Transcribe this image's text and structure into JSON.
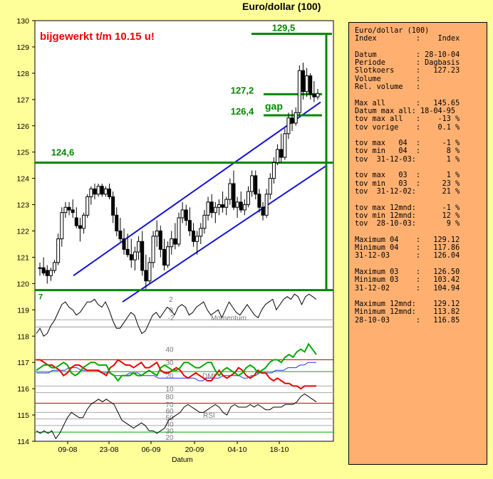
{
  "title": "Euro/dollar (100)",
  "chart_data": {
    "type": "line",
    "title": "Euro/dollar (100)",
    "xlabel": "Datum",
    "ylabel": "",
    "ylim": [
      114,
      130
    ],
    "yticks": [
      114,
      115,
      116,
      117,
      118,
      119,
      120,
      121,
      122,
      123,
      124,
      125,
      126,
      127,
      128,
      129,
      130
    ],
    "xticks": [
      "09-08",
      "23-08",
      "06-09",
      "20-09",
      "04-10",
      "18-10"
    ],
    "annotation": "bijgewerkt t/m 10.15 u!",
    "levels": [
      {
        "label": "129,5",
        "value": 129.5
      },
      {
        "label": "127,2",
        "value": 127.2
      },
      {
        "label": "126,4",
        "value": 126.4
      },
      {
        "label": "124,6",
        "value": 124.6
      }
    ],
    "gap_label": "gap",
    "candles": [
      [
        120.6,
        120.8,
        120.3,
        120.6
      ],
      [
        120.6,
        121.0,
        120.3,
        120.4
      ],
      [
        120.5,
        120.7,
        120.0,
        120.3
      ],
      [
        120.3,
        120.6,
        120.1,
        120.5
      ],
      [
        120.5,
        120.9,
        120.4,
        120.8
      ],
      [
        120.8,
        121.9,
        120.7,
        121.7
      ],
      [
        121.7,
        122.9,
        121.4,
        122.7
      ],
      [
        122.7,
        123.1,
        122.5,
        122.9
      ],
      [
        122.9,
        123.1,
        122.6,
        122.8
      ],
      [
        122.8,
        123.2,
        122.5,
        122.7
      ],
      [
        122.5,
        122.9,
        122.1,
        122.2
      ],
      [
        122.2,
        122.5,
        121.6,
        122.1
      ],
      [
        122.1,
        122.7,
        121.9,
        122.6
      ],
      [
        122.6,
        123.4,
        122.5,
        123.3
      ],
      [
        123.3,
        123.7,
        123.0,
        123.6
      ],
      [
        123.6,
        123.8,
        123.2,
        123.4
      ],
      [
        123.4,
        123.8,
        123.3,
        123.7
      ],
      [
        123.7,
        123.8,
        123.3,
        123.4
      ],
      [
        123.4,
        123.7,
        123.3,
        123.6
      ],
      [
        123.6,
        123.8,
        123.2,
        123.3
      ],
      [
        123.3,
        123.5,
        122.3,
        122.6
      ],
      [
        122.6,
        122.9,
        121.8,
        122.0
      ],
      [
        122.0,
        122.5,
        121.6,
        121.7
      ],
      [
        121.7,
        122.1,
        121.1,
        121.3
      ],
      [
        121.3,
        121.9,
        121.0,
        121.1
      ],
      [
        121.1,
        121.7,
        120.6,
        120.9
      ],
      [
        120.9,
        121.4,
        120.5,
        121.2
      ],
      [
        121.2,
        121.8,
        120.9,
        121.6
      ],
      [
        121.6,
        122.0,
        120.3,
        120.5
      ],
      [
        120.5,
        121.1,
        119.8,
        120.1
      ],
      [
        120.1,
        121.0,
        120.0,
        120.8
      ],
      [
        120.8,
        122.0,
        120.6,
        121.8
      ],
      [
        121.8,
        122.4,
        121.4,
        122.0
      ],
      [
        122.0,
        122.2,
        121.0,
        121.3
      ],
      [
        121.3,
        121.7,
        120.5,
        120.7
      ],
      [
        120.7,
        121.6,
        120.6,
        121.4
      ],
      [
        121.4,
        122.0,
        121.1,
        121.7
      ],
      [
        121.7,
        122.3,
        121.3,
        121.5
      ],
      [
        121.5,
        122.7,
        121.4,
        122.5
      ],
      [
        122.5,
        123.1,
        122.3,
        122.8
      ],
      [
        122.8,
        123.0,
        122.2,
        122.4
      ],
      [
        122.4,
        122.9,
        121.8,
        122.0
      ],
      [
        122.0,
        122.3,
        121.4,
        121.6
      ],
      [
        121.6,
        122.0,
        121.1,
        121.8
      ],
      [
        121.8,
        122.3,
        121.5,
        122.1
      ],
      [
        122.1,
        122.8,
        121.9,
        122.6
      ],
      [
        122.6,
        123.3,
        122.4,
        123.1
      ],
      [
        123.1,
        123.4,
        122.5,
        122.7
      ],
      [
        122.7,
        123.1,
        122.3,
        122.9
      ],
      [
        122.9,
        123.2,
        122.6,
        123.0
      ],
      [
        123.0,
        123.5,
        122.7,
        122.9
      ],
      [
        122.9,
        123.3,
        122.6,
        123.2
      ],
      [
        123.2,
        124.0,
        123.0,
        123.8
      ],
      [
        123.8,
        124.3,
        122.8,
        122.9
      ],
      [
        122.9,
        123.3,
        122.5,
        123.1
      ],
      [
        123.1,
        123.5,
        122.7,
        122.8
      ],
      [
        122.8,
        123.2,
        122.6,
        123.0
      ],
      [
        123.0,
        123.7,
        122.9,
        123.5
      ],
      [
        123.5,
        124.3,
        123.3,
        124.1
      ],
      [
        124.1,
        124.3,
        123.2,
        123.4
      ],
      [
        123.4,
        123.6,
        122.7,
        122.9
      ],
      [
        122.9,
        123.1,
        122.4,
        122.6
      ],
      [
        122.6,
        123.6,
        122.5,
        123.4
      ],
      [
        123.4,
        124.2,
        123.2,
        124.0
      ],
      [
        124.0,
        124.8,
        123.8,
        124.6
      ],
      [
        124.6,
        125.3,
        124.5,
        125.1
      ],
      [
        125.1,
        125.7,
        124.6,
        124.8
      ],
      [
        124.8,
        125.9,
        124.7,
        125.7
      ],
      [
        125.7,
        126.5,
        125.5,
        126.3
      ],
      [
        126.3,
        126.6,
        125.8,
        126.1
      ],
      [
        126.1,
        126.7,
        126.0,
        126.5
      ],
      [
        126.5,
        128.3,
        126.4,
        128.1
      ],
      [
        128.1,
        128.4,
        127.0,
        127.3
      ],
      [
        127.3,
        128.2,
        127.1,
        127.9
      ],
      [
        127.9,
        128.0,
        127.0,
        127.2
      ],
      [
        127.2,
        127.7,
        126.9,
        127.1
      ],
      [
        127.1,
        127.4,
        127.0,
        127.23
      ]
    ],
    "momentum": {
      "labels": [
        "2",
        "0",
        "-2"
      ],
      "name": "Momentum",
      "values": [
        118.1,
        118.3,
        118.0,
        118.1,
        118.4,
        118.6,
        118.9,
        119.2,
        119.3,
        119.1,
        119.0,
        118.8,
        118.9,
        119.1,
        119.3,
        119.3,
        119.4,
        119.2,
        119.1,
        119.3,
        119.0,
        118.6,
        118.3,
        118.3,
        118.5,
        118.7,
        118.9,
        118.8,
        118.4,
        118.1,
        118.2,
        118.5,
        118.8,
        118.9,
        118.7,
        118.9,
        119.1,
        119.0,
        118.8,
        119.1,
        119.2,
        119.1,
        118.8,
        118.9,
        119.1,
        119.2,
        119.3,
        119.0,
        118.8,
        118.9,
        119.0,
        118.7,
        119.0,
        119.3,
        119.1,
        118.9,
        118.8,
        119.0,
        119.2,
        119.0,
        118.8,
        118.7,
        119.0,
        119.2,
        119.3,
        119.4,
        119.0,
        119.2,
        119.4,
        119.5,
        119.4,
        119.6,
        119.5,
        119.2,
        119.5,
        119.6,
        119.5,
        119.4
      ]
    },
    "dmi": {
      "labels": [
        "40",
        "30",
        "20",
        "10"
      ],
      "name": "DMI",
      "red": [
        117.1,
        117.1,
        117.0,
        116.9,
        116.9,
        116.8,
        116.7,
        116.5,
        116.6,
        116.8,
        116.9,
        116.9,
        116.8,
        116.7,
        116.7,
        116.7,
        116.7,
        116.6,
        116.5,
        116.8,
        116.9,
        117.1,
        117.0,
        116.9,
        116.9,
        116.8,
        116.9,
        117.0,
        116.8,
        116.8,
        116.9,
        117.0,
        116.7,
        116.6,
        116.6,
        116.7,
        116.8,
        116.7,
        116.5,
        116.4,
        116.5,
        116.6,
        116.5,
        116.4,
        116.3,
        116.3,
        116.5,
        116.7,
        116.5,
        116.4,
        116.5,
        116.6,
        116.8,
        116.7,
        116.5,
        116.4,
        116.5,
        116.7,
        116.6,
        116.6,
        116.4,
        116.3,
        116.4,
        116.3,
        116.2,
        116.2,
        116.1,
        116.1,
        116.0,
        116.1,
        116.1,
        116.1,
        116.1
      ],
      "green": [
        116.7,
        116.8,
        116.9,
        116.9,
        116.8,
        116.8,
        116.9,
        117.0,
        116.9,
        116.6,
        116.5,
        116.6,
        116.8,
        116.9,
        117.0,
        117.0,
        116.9,
        116.9,
        116.9,
        116.6,
        116.5,
        116.3,
        116.5,
        116.5,
        116.5,
        116.6,
        116.5,
        116.5,
        116.6,
        116.7,
        116.6,
        116.5,
        116.8,
        116.9,
        116.8,
        116.7,
        116.7,
        116.8,
        117.0,
        117.0,
        116.9,
        116.8,
        116.8,
        116.9,
        117.0,
        117.0,
        116.7,
        116.5,
        116.7,
        116.8,
        116.7,
        116.6,
        116.5,
        116.6,
        116.8,
        116.9,
        116.8,
        116.6,
        116.7,
        116.8,
        117.0,
        117.1,
        117.1,
        117.0,
        117.2,
        117.3,
        117.2,
        117.4,
        117.5,
        117.4,
        117.7,
        117.5,
        117.3
      ],
      "blue": [
        116.6,
        116.6,
        116.6,
        116.6,
        116.7,
        116.7,
        116.7,
        116.7,
        116.8,
        116.8,
        116.8,
        116.7,
        116.7,
        116.7,
        116.7,
        116.7,
        116.6,
        116.6,
        116.6,
        116.5,
        116.5,
        116.5,
        116.5,
        116.6,
        116.6,
        116.6,
        116.5,
        116.5,
        116.5,
        116.5,
        116.4,
        116.4,
        116.4,
        116.4,
        116.4,
        116.4,
        116.4,
        116.4,
        116.4,
        116.4,
        116.3,
        116.3,
        116.4,
        116.4,
        116.4,
        116.4,
        116.5,
        116.5,
        116.5,
        116.5,
        116.5,
        116.4,
        116.4,
        116.5,
        116.5,
        116.6,
        116.6,
        116.6,
        116.6,
        116.7,
        116.7,
        116.7,
        116.8,
        116.8,
        116.8,
        116.9,
        116.9,
        117.0,
        117.0,
        117.0
      ]
    },
    "rsi": {
      "labels": [
        "80",
        "70",
        "60",
        "50",
        "40",
        "30",
        "20"
      ],
      "name": "RSI",
      "values": [
        114.4,
        114.3,
        114.4,
        114.3,
        114.4,
        114.1,
        114.3,
        114.6,
        114.9,
        115.1,
        115.0,
        114.9,
        114.9,
        115.2,
        115.4,
        115.5,
        115.6,
        115.5,
        115.6,
        115.5,
        115.4,
        115.1,
        114.8,
        114.7,
        114.6,
        114.5,
        114.6,
        114.7,
        114.6,
        114.4,
        114.4,
        114.3,
        114.4,
        114.5,
        114.8,
        114.9,
        115.0,
        115.1,
        115.3,
        115.4,
        115.3,
        115.2,
        115.1,
        115.1,
        115.2,
        115.3,
        115.4,
        115.3,
        115.1,
        115.0,
        115.3,
        115.4,
        115.3,
        115.3,
        115.3,
        115.4,
        115.3,
        115.4,
        115.3,
        115.2,
        115.2,
        115.3,
        115.3,
        115.3,
        115.4,
        115.4,
        115.4,
        115.5,
        115.7,
        115.8,
        115.7,
        115.6,
        115.5
      ]
    }
  },
  "info": [
    "Euro/dollar (100)",
    "Index         :    Index",
    "",
    "Datum         : 28-10-04",
    "Periode       : Dagbasis",
    "Slotkoers     :   127.23",
    "Volume        :",
    "Rel. volume   :",
    "",
    "Max all       :   145.65",
    "Datum max all: 18-04-95",
    "tov max all   :    -13 %",
    "tov vorige    :    0.1 %",
    "",
    "tov max   04  :     -1 %",
    "tov min   04  :      8 %",
    "tov  31-12-03:       1 %",
    "",
    "tov max   03  :      1 %",
    "tov min   03  :     23 %",
    "tov  31-12-02:      21 %",
    "",
    "tov max 12mnd:      -1 %",
    "tov min 12mnd:      12 %",
    "tov  28-10-03:       9 %",
    "",
    "Maximum 04    :   129.12",
    "Minimum 04    :   117.86",
    "31-12-03      :   126.04",
    "",
    "Maximum 03    :   126.50",
    "Minimum 03    :   103.42",
    "31-12-02      :   104.94",
    "",
    "Maximum 12mnd:    129.12",
    "Minimum 12mnd:    113.82",
    "28-10-03      :   116.85"
  ]
}
